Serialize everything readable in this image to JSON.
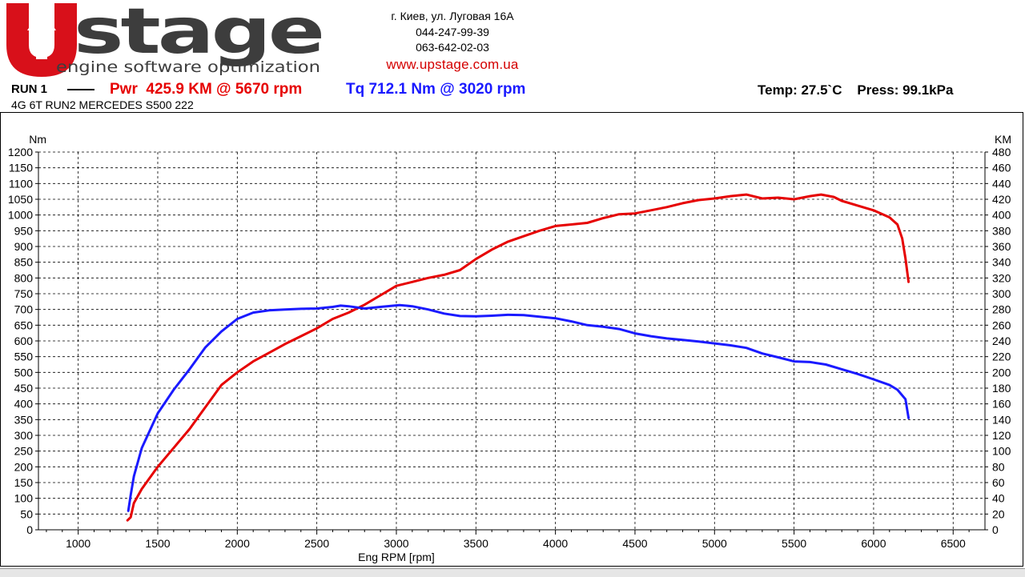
{
  "header": {
    "brand_main": "stage",
    "brand_tagline": "engine software optimization",
    "address": "г. Киев, ул. Луговая 16А",
    "phone1": "044-247-99-39",
    "phone2": "063-642-02-03",
    "website": "www.upstage.com.ua"
  },
  "run": {
    "label": "RUN 1",
    "power_text": "Pwr  425.9 KM @ 5670 rpm",
    "torque_text": "Tq 712.1 Nm @ 3020 rpm",
    "conditions_text": "Temp: 27.5`C    Press: 99.1kPa",
    "vehicle": "4G 6T RUN2 MERCEDES S500 222"
  },
  "colors": {
    "power": "#e60000",
    "torque": "#1a1aff",
    "logo_red": "#d8101a",
    "logo_gray": "#3d3d3d"
  },
  "chart_data": {
    "type": "line",
    "xlabel": "Eng RPM [rpm]",
    "ylabel_left": "Nm",
    "ylabel_right": "KM",
    "xlim": [
      750,
      6700
    ],
    "x_ticks": [
      1000,
      1500,
      2000,
      2500,
      3000,
      3500,
      4000,
      4500,
      5000,
      5500,
      6000,
      6500
    ],
    "ylim_left": [
      0,
      1200
    ],
    "ylim_right": [
      0,
      480
    ],
    "y_left_ticks": [
      0,
      50,
      100,
      150,
      200,
      250,
      300,
      350,
      400,
      450,
      500,
      550,
      600,
      650,
      700,
      750,
      800,
      850,
      900,
      950,
      1000,
      1050,
      1100,
      1150,
      1200
    ],
    "y_right_ticks": [
      0,
      20,
      40,
      60,
      80,
      100,
      120,
      140,
      160,
      180,
      200,
      220,
      240,
      260,
      280,
      300,
      320,
      340,
      360,
      380,
      400,
      420,
      440,
      460,
      480
    ],
    "grid": true,
    "series": [
      {
        "key": "power",
        "axis": "right",
        "color": "#e60000",
        "points": [
          [
            1310,
            12
          ],
          [
            1330,
            16
          ],
          [
            1350,
            34
          ],
          [
            1400,
            52
          ],
          [
            1500,
            80
          ],
          [
            1600,
            104
          ],
          [
            1700,
            128
          ],
          [
            1800,
            156
          ],
          [
            1900,
            184
          ],
          [
            2000,
            200
          ],
          [
            2100,
            214
          ],
          [
            2200,
            225
          ],
          [
            2300,
            236
          ],
          [
            2400,
            246
          ],
          [
            2500,
            256
          ],
          [
            2600,
            268
          ],
          [
            2700,
            276
          ],
          [
            2800,
            286
          ],
          [
            2900,
            298
          ],
          [
            3000,
            310
          ],
          [
            3100,
            315
          ],
          [
            3200,
            320
          ],
          [
            3300,
            324
          ],
          [
            3400,
            330
          ],
          [
            3500,
            344
          ],
          [
            3600,
            356
          ],
          [
            3700,
            366
          ],
          [
            3800,
            373
          ],
          [
            3900,
            380
          ],
          [
            4000,
            386
          ],
          [
            4100,
            388
          ],
          [
            4200,
            390
          ],
          [
            4300,
            396
          ],
          [
            4400,
            401
          ],
          [
            4500,
            402
          ],
          [
            4600,
            406
          ],
          [
            4700,
            410
          ],
          [
            4800,
            415
          ],
          [
            4900,
            419
          ],
          [
            5000,
            421
          ],
          [
            5100,
            424
          ],
          [
            5200,
            426
          ],
          [
            5300,
            421
          ],
          [
            5400,
            422
          ],
          [
            5500,
            420
          ],
          [
            5600,
            424
          ],
          [
            5670,
            426
          ],
          [
            5750,
            423
          ],
          [
            5800,
            418
          ],
          [
            5900,
            412
          ],
          [
            6000,
            406
          ],
          [
            6100,
            397
          ],
          [
            6150,
            388
          ],
          [
            6180,
            370
          ],
          [
            6200,
            345
          ],
          [
            6220,
            315
          ]
        ]
      },
      {
        "key": "torque",
        "axis": "left",
        "color": "#1a1aff",
        "points": [
          [
            1315,
            60
          ],
          [
            1330,
            110
          ],
          [
            1350,
            170
          ],
          [
            1400,
            260
          ],
          [
            1500,
            370
          ],
          [
            1600,
            445
          ],
          [
            1700,
            510
          ],
          [
            1800,
            580
          ],
          [
            1900,
            630
          ],
          [
            2000,
            670
          ],
          [
            2100,
            690
          ],
          [
            2200,
            697
          ],
          [
            2300,
            700
          ],
          [
            2400,
            702
          ],
          [
            2500,
            703
          ],
          [
            2600,
            708
          ],
          [
            2650,
            712
          ],
          [
            2700,
            710
          ],
          [
            2800,
            703
          ],
          [
            2900,
            708
          ],
          [
            3020,
            714
          ],
          [
            3100,
            710
          ],
          [
            3200,
            700
          ],
          [
            3300,
            687
          ],
          [
            3400,
            679
          ],
          [
            3500,
            678
          ],
          [
            3600,
            680
          ],
          [
            3700,
            683
          ],
          [
            3800,
            682
          ],
          [
            3900,
            677
          ],
          [
            4000,
            672
          ],
          [
            4100,
            662
          ],
          [
            4200,
            650
          ],
          [
            4300,
            645
          ],
          [
            4400,
            638
          ],
          [
            4500,
            624
          ],
          [
            4600,
            615
          ],
          [
            4700,
            608
          ],
          [
            4800,
            603
          ],
          [
            4900,
            598
          ],
          [
            5000,
            592
          ],
          [
            5100,
            586
          ],
          [
            5200,
            578
          ],
          [
            5300,
            560
          ],
          [
            5400,
            548
          ],
          [
            5500,
            535
          ],
          [
            5600,
            533
          ],
          [
            5700,
            525
          ],
          [
            5800,
            510
          ],
          [
            5900,
            495
          ],
          [
            6000,
            478
          ],
          [
            6100,
            460
          ],
          [
            6150,
            445
          ],
          [
            6200,
            415
          ],
          [
            6220,
            355
          ]
        ]
      }
    ]
  }
}
